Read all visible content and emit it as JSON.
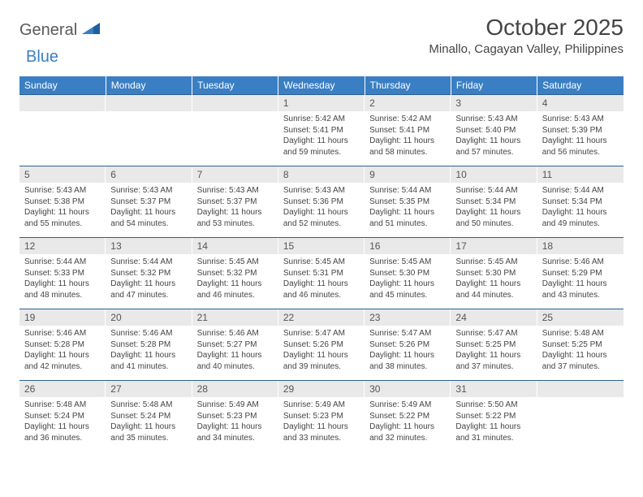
{
  "logo": {
    "text1": "General",
    "text2": "Blue"
  },
  "title": "October 2025",
  "location": "Minallo, Cagayan Valley, Philippines",
  "colors": {
    "header_bg": "#3a7fc3",
    "header_fg": "#ffffff",
    "daynum_bg": "#e9e9e9",
    "row_border": "#2b5f93",
    "text": "#444444",
    "background": "#ffffff"
  },
  "weekdays": [
    "Sunday",
    "Monday",
    "Tuesday",
    "Wednesday",
    "Thursday",
    "Friday",
    "Saturday"
  ],
  "weeks": [
    [
      null,
      null,
      null,
      {
        "day": "1",
        "sunrise": "5:42 AM",
        "sunset": "5:41 PM",
        "daylight": "11 hours and 59 minutes."
      },
      {
        "day": "2",
        "sunrise": "5:42 AM",
        "sunset": "5:41 PM",
        "daylight": "11 hours and 58 minutes."
      },
      {
        "day": "3",
        "sunrise": "5:43 AM",
        "sunset": "5:40 PM",
        "daylight": "11 hours and 57 minutes."
      },
      {
        "day": "4",
        "sunrise": "5:43 AM",
        "sunset": "5:39 PM",
        "daylight": "11 hours and 56 minutes."
      }
    ],
    [
      {
        "day": "5",
        "sunrise": "5:43 AM",
        "sunset": "5:38 PM",
        "daylight": "11 hours and 55 minutes."
      },
      {
        "day": "6",
        "sunrise": "5:43 AM",
        "sunset": "5:37 PM",
        "daylight": "11 hours and 54 minutes."
      },
      {
        "day": "7",
        "sunrise": "5:43 AM",
        "sunset": "5:37 PM",
        "daylight": "11 hours and 53 minutes."
      },
      {
        "day": "8",
        "sunrise": "5:43 AM",
        "sunset": "5:36 PM",
        "daylight": "11 hours and 52 minutes."
      },
      {
        "day": "9",
        "sunrise": "5:44 AM",
        "sunset": "5:35 PM",
        "daylight": "11 hours and 51 minutes."
      },
      {
        "day": "10",
        "sunrise": "5:44 AM",
        "sunset": "5:34 PM",
        "daylight": "11 hours and 50 minutes."
      },
      {
        "day": "11",
        "sunrise": "5:44 AM",
        "sunset": "5:34 PM",
        "daylight": "11 hours and 49 minutes."
      }
    ],
    [
      {
        "day": "12",
        "sunrise": "5:44 AM",
        "sunset": "5:33 PM",
        "daylight": "11 hours and 48 minutes."
      },
      {
        "day": "13",
        "sunrise": "5:44 AM",
        "sunset": "5:32 PM",
        "daylight": "11 hours and 47 minutes."
      },
      {
        "day": "14",
        "sunrise": "5:45 AM",
        "sunset": "5:32 PM",
        "daylight": "11 hours and 46 minutes."
      },
      {
        "day": "15",
        "sunrise": "5:45 AM",
        "sunset": "5:31 PM",
        "daylight": "11 hours and 46 minutes."
      },
      {
        "day": "16",
        "sunrise": "5:45 AM",
        "sunset": "5:30 PM",
        "daylight": "11 hours and 45 minutes."
      },
      {
        "day": "17",
        "sunrise": "5:45 AM",
        "sunset": "5:30 PM",
        "daylight": "11 hours and 44 minutes."
      },
      {
        "day": "18",
        "sunrise": "5:46 AM",
        "sunset": "5:29 PM",
        "daylight": "11 hours and 43 minutes."
      }
    ],
    [
      {
        "day": "19",
        "sunrise": "5:46 AM",
        "sunset": "5:28 PM",
        "daylight": "11 hours and 42 minutes."
      },
      {
        "day": "20",
        "sunrise": "5:46 AM",
        "sunset": "5:28 PM",
        "daylight": "11 hours and 41 minutes."
      },
      {
        "day": "21",
        "sunrise": "5:46 AM",
        "sunset": "5:27 PM",
        "daylight": "11 hours and 40 minutes."
      },
      {
        "day": "22",
        "sunrise": "5:47 AM",
        "sunset": "5:26 PM",
        "daylight": "11 hours and 39 minutes."
      },
      {
        "day": "23",
        "sunrise": "5:47 AM",
        "sunset": "5:26 PM",
        "daylight": "11 hours and 38 minutes."
      },
      {
        "day": "24",
        "sunrise": "5:47 AM",
        "sunset": "5:25 PM",
        "daylight": "11 hours and 37 minutes."
      },
      {
        "day": "25",
        "sunrise": "5:48 AM",
        "sunset": "5:25 PM",
        "daylight": "11 hours and 37 minutes."
      }
    ],
    [
      {
        "day": "26",
        "sunrise": "5:48 AM",
        "sunset": "5:24 PM",
        "daylight": "11 hours and 36 minutes."
      },
      {
        "day": "27",
        "sunrise": "5:48 AM",
        "sunset": "5:24 PM",
        "daylight": "11 hours and 35 minutes."
      },
      {
        "day": "28",
        "sunrise": "5:49 AM",
        "sunset": "5:23 PM",
        "daylight": "11 hours and 34 minutes."
      },
      {
        "day": "29",
        "sunrise": "5:49 AM",
        "sunset": "5:23 PM",
        "daylight": "11 hours and 33 minutes."
      },
      {
        "day": "30",
        "sunrise": "5:49 AM",
        "sunset": "5:22 PM",
        "daylight": "11 hours and 32 minutes."
      },
      {
        "day": "31",
        "sunrise": "5:50 AM",
        "sunset": "5:22 PM",
        "daylight": "11 hours and 31 minutes."
      },
      null
    ]
  ],
  "labels": {
    "sunrise": "Sunrise: ",
    "sunset": "Sunset: ",
    "daylight": "Daylight: "
  }
}
